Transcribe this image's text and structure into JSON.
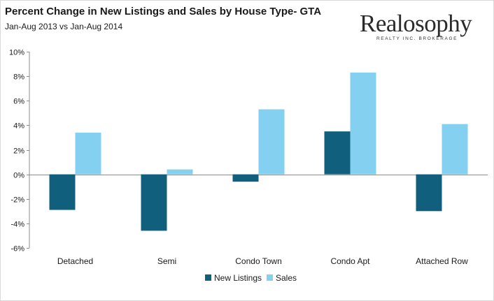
{
  "header": {
    "title": "Percent Change in New Listings and Sales by House Type- GTA",
    "subtitle": "Jan-Aug 2013 vs Jan-Aug 2014"
  },
  "logo": {
    "name": "Realosophy",
    "tagline": "REALTY INC. BROKERAGE"
  },
  "chart_data": {
    "type": "bar",
    "categories": [
      "Detached",
      "Semi",
      "Condo Town",
      "Condo Apt",
      "Attached Row"
    ],
    "series": [
      {
        "name": "New Listings",
        "color": "#10607d",
        "values": [
          -2.9,
          -4.6,
          -0.6,
          3.5,
          -3.0
        ]
      },
      {
        "name": "Sales",
        "color": "#83d0f0",
        "values": [
          3.4,
          0.4,
          5.3,
          8.3,
          4.1
        ]
      }
    ],
    "ylim": [
      -6,
      10
    ],
    "yticks": [
      -6,
      -4,
      -2,
      0,
      2,
      4,
      6,
      8,
      10
    ],
    "ytick_labels": [
      "-6%",
      "-4%",
      "-2%",
      "0%",
      "2%",
      "4%",
      "6%",
      "8%",
      "10%"
    ],
    "xlabel": "",
    "ylabel": "",
    "grid": false,
    "legend": "bottom"
  }
}
